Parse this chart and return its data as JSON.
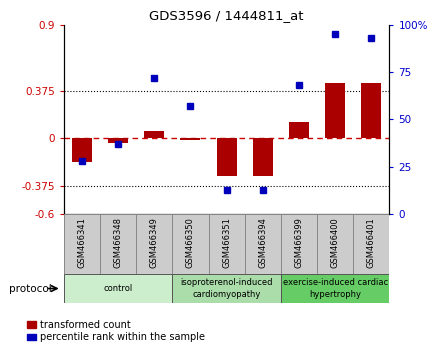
{
  "title": "GDS3596 / 1444811_at",
  "samples": [
    "GSM466341",
    "GSM466348",
    "GSM466349",
    "GSM466350",
    "GSM466351",
    "GSM466394",
    "GSM466399",
    "GSM466400",
    "GSM466401"
  ],
  "transformed_count": [
    -0.19,
    -0.035,
    0.06,
    -0.01,
    -0.3,
    -0.295,
    0.13,
    0.44,
    0.44
  ],
  "percentile_rank": [
    28,
    37,
    72,
    57,
    13,
    13,
    68,
    95,
    93
  ],
  "groups": [
    {
      "label": "control",
      "start": 0,
      "end": 3,
      "color": "#cceecc"
    },
    {
      "label": "isoproterenol-induced\ncardiomyopathy",
      "start": 3,
      "end": 6,
      "color": "#aaddaa"
    },
    {
      "label": "exercise-induced cardiac\nhypertrophy",
      "start": 6,
      "end": 9,
      "color": "#66cc66"
    }
  ],
  "ylim_left": [
    -0.6,
    0.9
  ],
  "ylim_right": [
    0,
    100
  ],
  "yticks_left": [
    -0.6,
    -0.375,
    0,
    0.375,
    0.9
  ],
  "yticks_left_labels": [
    "-0.6",
    "-0.375",
    "0",
    "0.375",
    "0.9"
  ],
  "yticks_right": [
    0,
    25,
    50,
    75,
    100
  ],
  "yticks_right_labels": [
    "0",
    "25",
    "50",
    "75",
    "100%"
  ],
  "hlines": [
    0.375,
    -0.375
  ],
  "bar_color": "#aa0000",
  "dot_color": "#0000bb",
  "bar_width": 0.55,
  "tick_box_color": "#cccccc",
  "background_color": "#ffffff"
}
